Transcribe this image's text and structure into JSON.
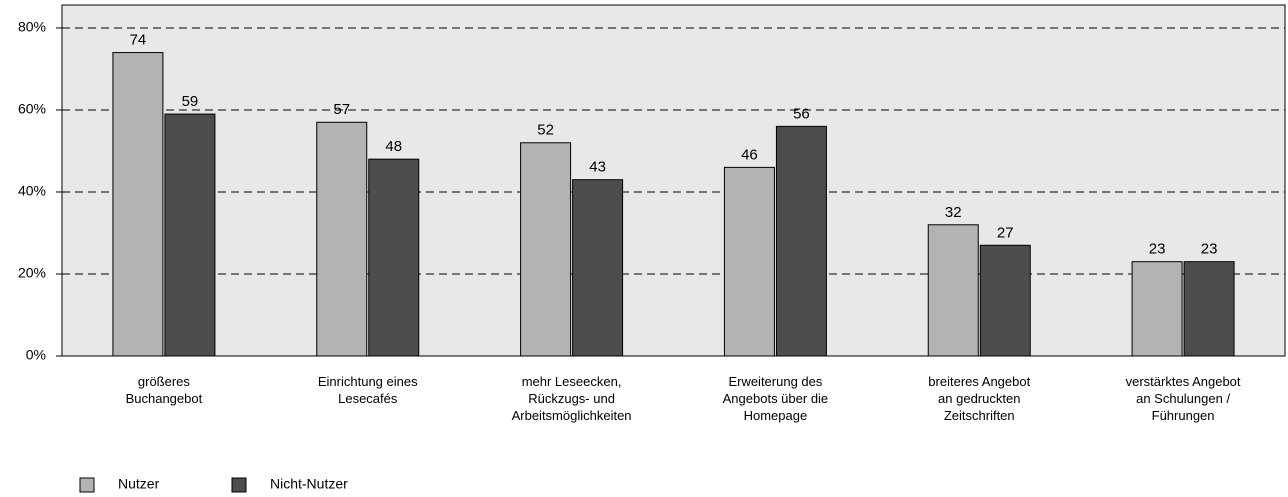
{
  "chart_data": {
    "type": "bar",
    "categories": [
      [
        "größeres",
        "Buchangebot"
      ],
      [
        "Einrichtung eines",
        "Lesecafés"
      ],
      [
        "mehr Leseecken,",
        "Rückzugs- und",
        "Arbeitsmöglichkeiten"
      ],
      [
        "Erweiterung des",
        "Angebots über die",
        "Homepage"
      ],
      [
        "breiteres Angebot",
        "an gedruckten",
        "Zeitschriften"
      ],
      [
        "verstärktes Angebot",
        "an Schulungen /",
        "Führungen"
      ]
    ],
    "series": [
      {
        "name": "Nutzer",
        "color": "#b3b3b3",
        "values": [
          74,
          57,
          52,
          46,
          32,
          23
        ]
      },
      {
        "name": "Nicht-Nutzer",
        "color": "#4d4d4d",
        "values": [
          59,
          48,
          43,
          56,
          27,
          23
        ]
      }
    ],
    "ylim": [
      0,
      85.6
    ],
    "yticks": [
      {
        "value": 0,
        "label": "0%"
      },
      {
        "value": 20,
        "label": "20%"
      },
      {
        "value": 40,
        "label": "40%"
      },
      {
        "value": 60,
        "label": "60%"
      },
      {
        "value": 80,
        "label": "80%"
      }
    ],
    "grid": true,
    "legend": "bottom-left"
  }
}
